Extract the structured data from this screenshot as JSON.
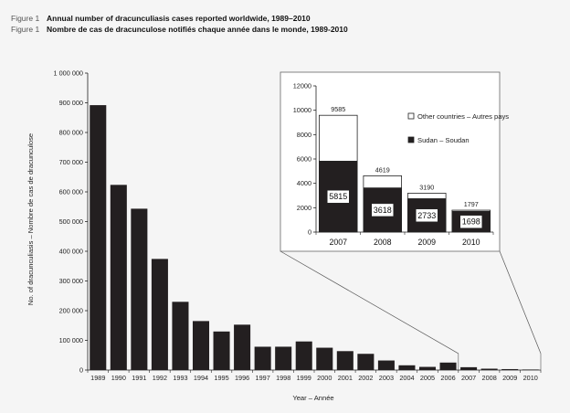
{
  "figure": {
    "label_en": "Figure 1",
    "title_en": "Annual number of dracunculiasis cases reported worldwide, 1989–2010",
    "label_fr": "Figure 1",
    "title_fr": "Nombre de cas de dracunculose notifiés chaque année dans le monde, 1989-2010"
  },
  "chart_data": [
    {
      "type": "bar",
      "title": "",
      "xlabel": "Year – Année",
      "ylabel": "No. of dracunculiasis – Nombre de cas de dracunculose",
      "ylim": [
        0,
        1000000
      ],
      "yticks": [
        0,
        100000,
        200000,
        300000,
        400000,
        500000,
        600000,
        700000,
        800000,
        900000,
        1000000
      ],
      "ytick_labels": [
        "0",
        "100 000",
        "200 000",
        "300 000",
        "400 000",
        "500 000",
        "600 000",
        "700 000",
        "800 000",
        "900 000",
        "1 000 000"
      ],
      "categories": [
        "1989",
        "1990",
        "1991",
        "1992",
        "1993",
        "1994",
        "1995",
        "1996",
        "1997",
        "1998",
        "1999",
        "2000",
        "2001",
        "2002",
        "2003",
        "2004",
        "2005",
        "2006",
        "2007",
        "2008",
        "2009",
        "2010"
      ],
      "values": [
        892055,
        623579,
        543364,
        374202,
        229773,
        164977,
        129852,
        152814,
        78557,
        78624,
        96293,
        75223,
        63717,
        54638,
        32193,
        16026,
        10674,
        25217,
        9585,
        4619,
        3190,
        1797
      ],
      "grid": false,
      "color": "#231f20"
    },
    {
      "type": "bar",
      "stacked": true,
      "title": "",
      "ylim": [
        0,
        12000
      ],
      "yticks": [
        0,
        2000,
        4000,
        6000,
        8000,
        10000,
        12000
      ],
      "ytick_labels": [
        "0",
        "2000",
        "4000",
        "6000",
        "8000",
        "10000",
        "12000"
      ],
      "categories": [
        "2007",
        "2008",
        "2009",
        "2010"
      ],
      "totals": [
        9585,
        4619,
        3190,
        1797
      ],
      "series": [
        {
          "name": "Sudan – Soudan",
          "values": [
            5815,
            3618,
            2733,
            1698
          ],
          "color": "#231f20"
        },
        {
          "name": "Other countries – Autres pays",
          "values": [
            3770,
            1001,
            457,
            99
          ],
          "color": "#ffffff"
        }
      ],
      "legend_position": "top-right",
      "legend_order": [
        "Other countries – Autres pays",
        "Sudan – Soudan"
      ]
    }
  ]
}
